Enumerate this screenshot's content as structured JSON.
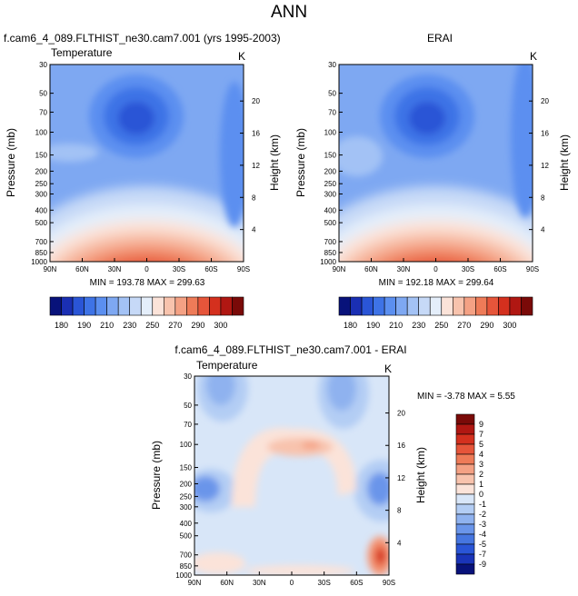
{
  "page_title": "ANN",
  "chart_data": [
    {
      "type": "heatmap",
      "title": "f.cam6_4_089.FLTHIST_ne30.cam7.001 (yrs 1995-2003)",
      "variable": "Temperature",
      "units": "K",
      "ylabel": "Pressure (mb)",
      "ylabel_right": "Height (km)",
      "x_ticks": [
        "90N",
        "60N",
        "30N",
        "0",
        "30S",
        "60S",
        "90S"
      ],
      "y_ticks": [
        "30",
        "50",
        "70",
        "100",
        "150",
        "200",
        "250",
        "300",
        "400",
        "500",
        "700",
        "850",
        "1000"
      ],
      "height_ticks": [
        "20",
        "16",
        "12",
        "8",
        "4"
      ],
      "stats": "MIN = 193.78   MAX = 299.63",
      "min": 193.78,
      "max": 299.63,
      "colorbar": [
        "180",
        "190",
        "210",
        "230",
        "250",
        "270",
        "290",
        "300"
      ],
      "colors": [
        "#08127a",
        "#1a2fb3",
        "#2a55d6",
        "#3e73e6",
        "#5b8ff0",
        "#7ea8f2",
        "#a3c2f5",
        "#c6d9f7",
        "#e4eefa",
        "#fbe3d9",
        "#f8c3ad",
        "#f4a184",
        "#ee7b58",
        "#e6553a",
        "#d4301e",
        "#b01712",
        "#7a0a08"
      ]
    },
    {
      "type": "heatmap",
      "title": "ERAI",
      "variable": "",
      "units": "K",
      "ylabel": "Pressure (mb)",
      "ylabel_right": "Height (km)",
      "x_ticks": [
        "90N",
        "60N",
        "30N",
        "0",
        "30S",
        "60S",
        "90S"
      ],
      "y_ticks": [
        "30",
        "50",
        "70",
        "100",
        "150",
        "200",
        "250",
        "300",
        "400",
        "500",
        "700",
        "850",
        "1000"
      ],
      "height_ticks": [
        "20",
        "16",
        "12",
        "8",
        "4"
      ],
      "stats": "MIN = 192.18   MAX = 299.64",
      "min": 192.18,
      "max": 299.64,
      "colorbar": [
        "180",
        "190",
        "210",
        "230",
        "250",
        "270",
        "290",
        "300"
      ],
      "colors": [
        "#08127a",
        "#1a2fb3",
        "#2a55d6",
        "#3e73e6",
        "#5b8ff0",
        "#7ea8f2",
        "#a3c2f5",
        "#c6d9f7",
        "#e4eefa",
        "#fbe3d9",
        "#f8c3ad",
        "#f4a184",
        "#ee7b58",
        "#e6553a",
        "#d4301e",
        "#b01712",
        "#7a0a08"
      ]
    },
    {
      "type": "heatmap",
      "title": "f.cam6_4_089.FLTHIST_ne30.cam7.001 - ERAI",
      "variable": "Temperature",
      "units": "K",
      "ylabel": "Pressure (mb)",
      "ylabel_right": "Height (km)",
      "x_ticks": [
        "90N",
        "60N",
        "30N",
        "0",
        "30S",
        "60S",
        "90S"
      ],
      "y_ticks": [
        "30",
        "50",
        "70",
        "100",
        "150",
        "200",
        "250",
        "300",
        "400",
        "500",
        "700",
        "850",
        "1000"
      ],
      "height_ticks": [
        "20",
        "16",
        "12",
        "8",
        "4"
      ],
      "stats": "MIN = -3.78  MAX =  5.55",
      "min": -3.78,
      "max": 5.55,
      "colorbar": [
        "9",
        "7",
        "5",
        "4",
        "3",
        "2",
        "1",
        "0",
        "-1",
        "-2",
        "-3",
        "-4",
        "-5",
        "-7",
        "-9"
      ],
      "colors": [
        "#7a0a08",
        "#b01712",
        "#d4301e",
        "#e6553a",
        "#ee7b58",
        "#f4a184",
        "#f8c3ad",
        "#fbe3d9",
        "#d8e6f8",
        "#b3cdf4",
        "#8fb2ef",
        "#6a95ea",
        "#4676e0",
        "#2a55d6",
        "#1a34b8",
        "#08127a"
      ]
    }
  ]
}
